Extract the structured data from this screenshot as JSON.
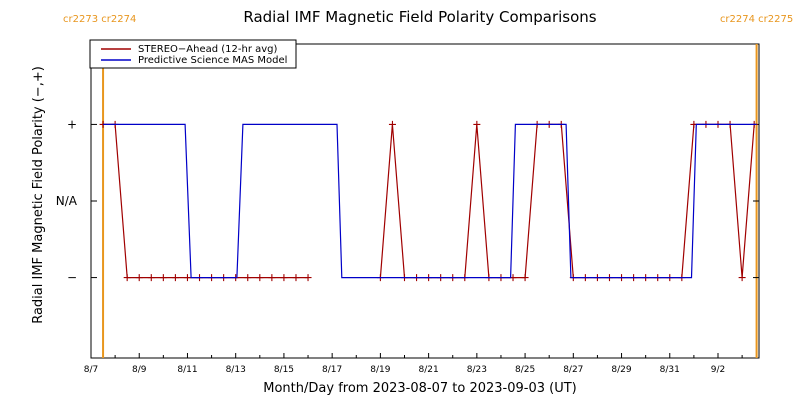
{
  "chart_data": {
    "type": "line",
    "title": "Radial IMF Magnetic Field Polarity Comparisons",
    "xlabel": "Month/Day from 2023-08-07 to 2023-09-03 (UT)",
    "ylabel": "Radial IMF Magnetic Field Polarity (−,+)",
    "xlim": [
      0,
      27.7
    ],
    "ylim": [
      -2.05,
      2.05
    ],
    "x_ticks": [
      {
        "value": 0,
        "label": "8/7"
      },
      {
        "value": 2,
        "label": "8/9"
      },
      {
        "value": 4,
        "label": "8/11"
      },
      {
        "value": 6,
        "label": "8/13"
      },
      {
        "value": 8,
        "label": "8/15"
      },
      {
        "value": 10,
        "label": "8/17"
      },
      {
        "value": 12,
        "label": "8/19"
      },
      {
        "value": 14,
        "label": "8/21"
      },
      {
        "value": 16,
        "label": "8/23"
      },
      {
        "value": 18,
        "label": "8/25"
      },
      {
        "value": 20,
        "label": "8/27"
      },
      {
        "value": 22,
        "label": "8/29"
      },
      {
        "value": 24,
        "label": "8/31"
      },
      {
        "value": 26,
        "label": "9/2"
      }
    ],
    "y_ticks": [
      {
        "value": 1,
        "label": "+"
      },
      {
        "value": 0,
        "label": "N/A"
      },
      {
        "value": -1,
        "label": "−"
      }
    ],
    "carrington_markers": [
      {
        "x": 0.5,
        "top_labels": [
          "cr2273",
          "cr2274"
        ]
      },
      {
        "x": 27.6,
        "top_labels": [
          "cr2274",
          "cr2275"
        ]
      }
    ],
    "series": [
      {
        "name": "STEREO−Ahead (12-hr avg)",
        "color": "#a00000",
        "markers": true,
        "points": [
          [
            0.5,
            1
          ],
          [
            1.0,
            1
          ],
          [
            1.5,
            -1
          ],
          [
            2.0,
            -1
          ],
          [
            2.5,
            -1
          ],
          [
            3.0,
            -1
          ],
          [
            3.5,
            -1
          ],
          [
            4.0,
            -1
          ],
          [
            4.5,
            -1
          ],
          [
            5.0,
            -1
          ],
          [
            5.5,
            -1
          ],
          [
            6.0,
            -1
          ],
          [
            6.5,
            -1
          ],
          [
            7.0,
            -1
          ],
          [
            7.5,
            -1
          ],
          [
            8.0,
            -1
          ],
          [
            8.5,
            -1
          ],
          [
            9.0,
            -1
          ],
          null,
          [
            12.0,
            -1
          ],
          [
            12.5,
            1
          ],
          [
            13.0,
            -1
          ],
          [
            13.5,
            -1
          ],
          [
            14.0,
            -1
          ],
          [
            14.5,
            -1
          ],
          [
            15.0,
            -1
          ],
          [
            15.5,
            -1
          ],
          [
            16.0,
            1
          ],
          [
            16.5,
            -1
          ],
          [
            17.0,
            -1
          ],
          [
            17.5,
            -1
          ],
          [
            18.0,
            -1
          ],
          [
            18.5,
            1
          ],
          [
            19.0,
            1
          ],
          [
            19.5,
            1
          ],
          [
            20.0,
            -1
          ],
          [
            20.5,
            -1
          ],
          [
            21.0,
            -1
          ],
          [
            21.5,
            -1
          ],
          [
            22.0,
            -1
          ],
          [
            22.5,
            -1
          ],
          [
            23.0,
            -1
          ],
          [
            23.5,
            -1
          ],
          [
            24.0,
            -1
          ],
          [
            24.5,
            -1
          ],
          [
            25.0,
            1
          ],
          [
            25.5,
            1
          ],
          [
            26.0,
            1
          ],
          [
            26.5,
            1
          ],
          [
            27.0,
            -1
          ],
          [
            27.5,
            1
          ]
        ]
      },
      {
        "name": "Predictive Science MAS Model",
        "color": "#0000c8",
        "markers": false,
        "points": [
          [
            0.5,
            1
          ],
          [
            3.9,
            1
          ],
          [
            4.15,
            -1
          ],
          [
            6.05,
            -1
          ],
          [
            6.3,
            1
          ],
          [
            10.2,
            1
          ],
          [
            10.4,
            -1
          ],
          [
            17.4,
            -1
          ],
          [
            17.6,
            1
          ],
          [
            19.7,
            1
          ],
          [
            19.9,
            -1
          ],
          [
            24.9,
            -1
          ],
          [
            25.1,
            1
          ],
          [
            27.6,
            1
          ]
        ]
      }
    ],
    "legend": "top-left"
  }
}
